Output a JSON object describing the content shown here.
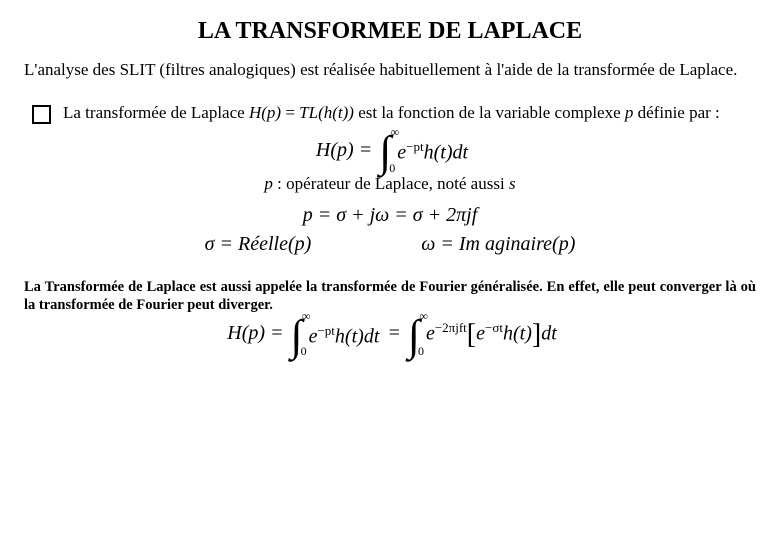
{
  "title": "LA TRANSFORMEE DE LAPLACE",
  "intro": "L'analyse des SLIT (filtres analogiques) est réalisée habituellement à l'aide de la transformée de Laplace.",
  "bullet": {
    "pre": "La transformée de Laplace ",
    "hp": "H(p)",
    "eq": " = ",
    "tl": "TL(h(t))",
    "post": " est la fonction de la variable complexe ",
    "p": "p",
    "end": " définie par :"
  },
  "eq1": {
    "lhs": "H",
    "arg": "p",
    "upper": "∞",
    "lower": "0",
    "exp": "−pt",
    "ht": "h",
    "t": "t",
    "dt": "dt"
  },
  "op_note": {
    "p": "p",
    "text": " : opérateur de Laplace, noté aussi ",
    "s": "s"
  },
  "eq2": "p = σ + jω = σ + 2πjf",
  "eq3a": "σ = Réelle(p)",
  "eq3b": "ω = Im aginaire(p)",
  "footer": "La Transformée de Laplace est aussi appelée la transformée de Fourier généralisée. En effet, elle peut converger là où la transformée de Fourier peut diverger.",
  "eqf": {
    "lhs": "H",
    "arg": "p",
    "upper": "∞",
    "lower": "0",
    "exp1": "−pt",
    "h": "h",
    "t": "t",
    "dt": "dt",
    "exp2": "−2πjft",
    "exp3": "−σt"
  }
}
